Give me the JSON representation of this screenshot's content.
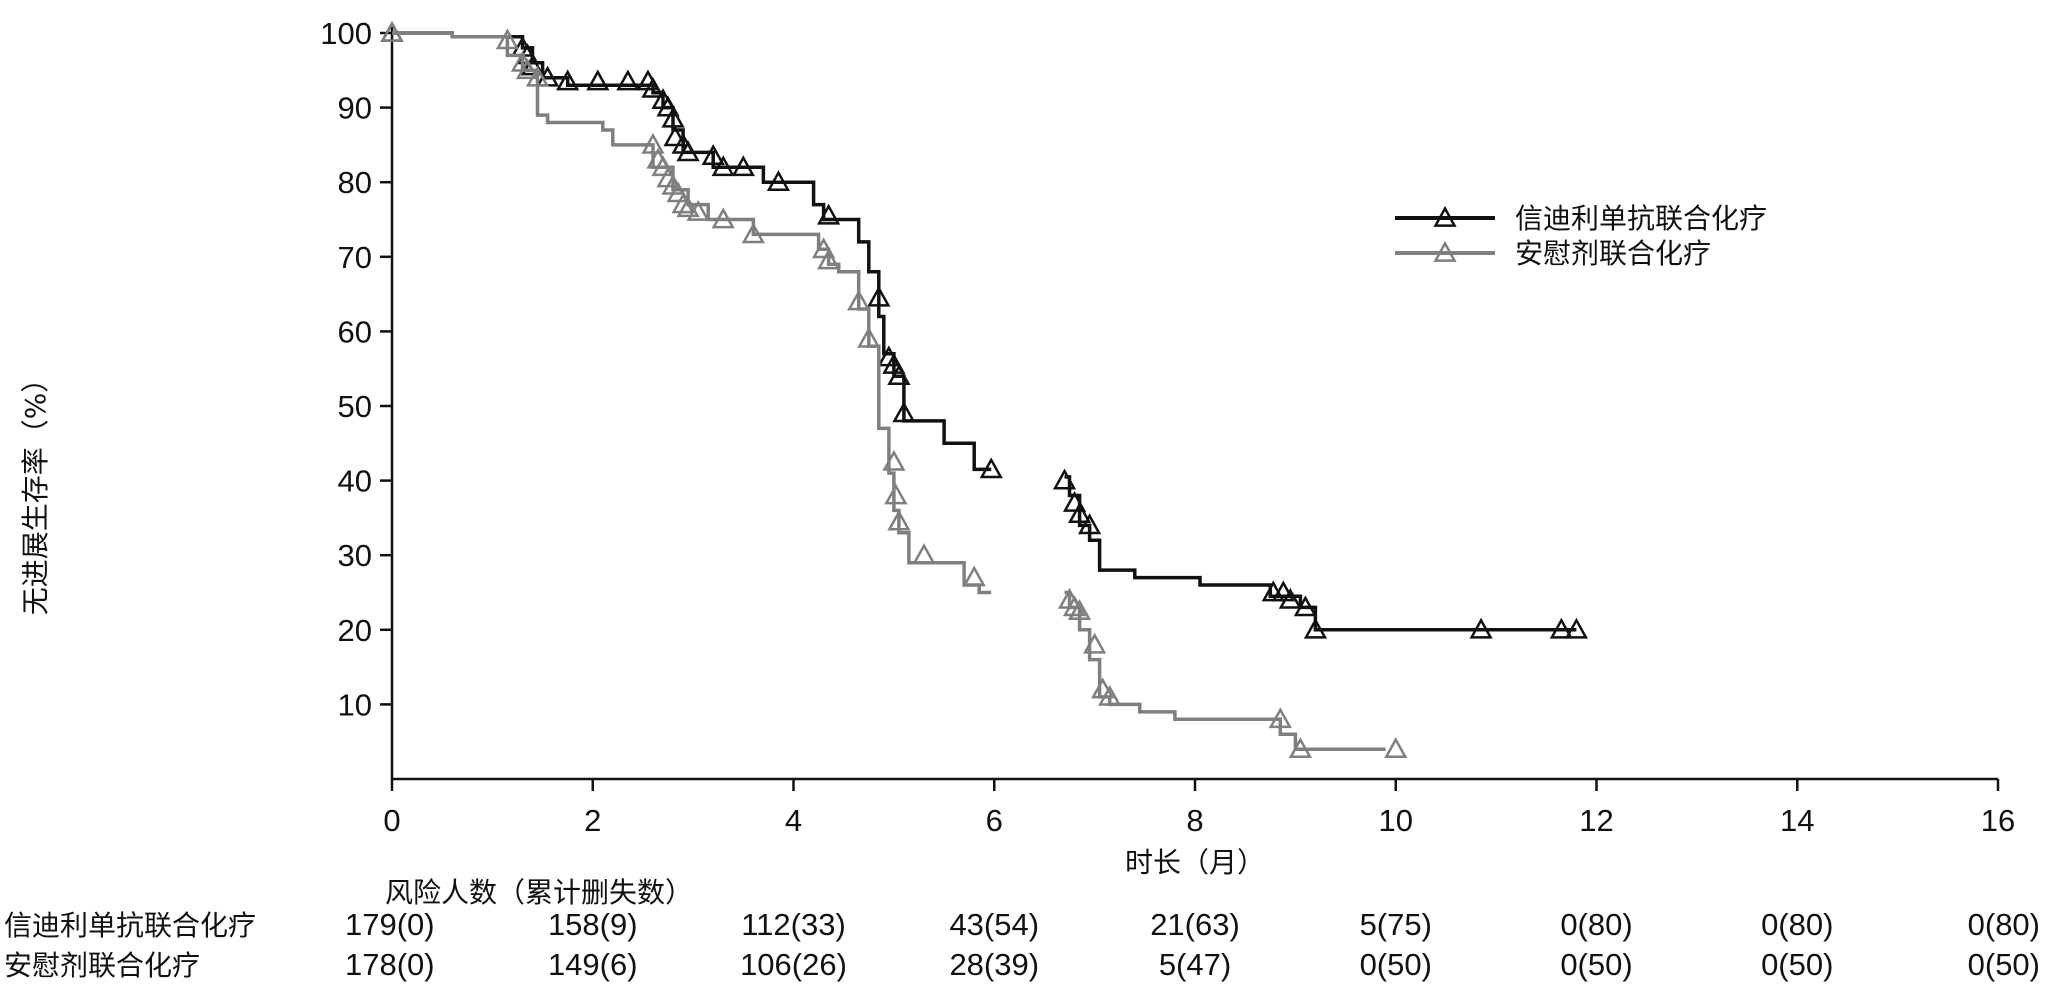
{
  "chart_data": {
    "type": "line",
    "subtype": "kaplan-meier step curve",
    "xlabel": "时长（月）",
    "ylabel": "无进展生存率（%）",
    "xlim": [
      0,
      16
    ],
    "ylim": [
      0,
      100
    ],
    "xticks": [
      "0",
      "2",
      "4",
      "6",
      "8",
      "10",
      "12",
      "14",
      "16"
    ],
    "yticks": [
      "10",
      "20",
      "30",
      "40",
      "50",
      "60",
      "70",
      "80",
      "90",
      "100"
    ],
    "legend_position": "right",
    "series": [
      {
        "name": "信迪利单抗联合化疗",
        "color": "#111111",
        "segments": [
          [
            [
              0,
              100
            ],
            [
              0.6,
              100
            ],
            [
              0.6,
              99.5
            ],
            [
              1.3,
              99.5
            ],
            [
              1.3,
              98
            ],
            [
              1.4,
              98
            ],
            [
              1.4,
              96
            ],
            [
              1.5,
              96
            ],
            [
              1.5,
              94
            ],
            [
              1.75,
              94
            ],
            [
              1.75,
              93
            ],
            [
              2.6,
              93
            ],
            [
              2.6,
              92
            ],
            [
              2.7,
              92
            ],
            [
              2.7,
              90
            ],
            [
              2.8,
              90
            ],
            [
              2.8,
              87
            ],
            [
              2.9,
              87
            ],
            [
              2.9,
              84
            ],
            [
              3.2,
              84
            ],
            [
              3.2,
              82
            ],
            [
              3.7,
              82
            ],
            [
              3.7,
              80
            ],
            [
              4.2,
              80
            ],
            [
              4.2,
              77
            ],
            [
              4.3,
              77
            ],
            [
              4.3,
              75
            ],
            [
              4.65,
              75
            ],
            [
              4.65,
              72
            ],
            [
              4.75,
              72
            ],
            [
              4.75,
              68
            ],
            [
              4.85,
              68
            ],
            [
              4.85,
              62
            ],
            [
              4.9,
              62
            ],
            [
              4.9,
              57
            ],
            [
              5.0,
              57
            ],
            [
              5.0,
              54
            ],
            [
              5.1,
              54
            ],
            [
              5.1,
              48
            ],
            [
              5.5,
              48
            ],
            [
              5.5,
              45
            ],
            [
              5.8,
              45
            ],
            [
              5.8,
              41.5
            ],
            [
              5.97,
              41.5
            ]
          ],
          [
            [
              6.7,
              40.5
            ],
            [
              6.75,
              40.5
            ],
            [
              6.75,
              38
            ],
            [
              6.85,
              38
            ],
            [
              6.85,
              34
            ],
            [
              6.95,
              34
            ],
            [
              6.95,
              32
            ],
            [
              7.05,
              32
            ],
            [
              7.05,
              28
            ],
            [
              7.4,
              28
            ],
            [
              7.4,
              27
            ],
            [
              8.05,
              27
            ],
            [
              8.05,
              26
            ],
            [
              8.75,
              26
            ],
            [
              8.75,
              24.5
            ],
            [
              9.05,
              24.5
            ],
            [
              9.05,
              23
            ],
            [
              9.2,
              23
            ],
            [
              9.2,
              20
            ],
            [
              11.8,
              20
            ]
          ]
        ],
        "censor_marks": [
          [
            0,
            100
          ],
          [
            1.3,
            98
          ],
          [
            1.35,
            97
          ],
          [
            1.4,
            95.5
          ],
          [
            1.55,
            94
          ],
          [
            1.75,
            93.5
          ],
          [
            2.05,
            93.5
          ],
          [
            2.35,
            93.5
          ],
          [
            2.55,
            93.5
          ],
          [
            2.6,
            92.5
          ],
          [
            2.7,
            91
          ],
          [
            2.75,
            90
          ],
          [
            2.8,
            88.5
          ],
          [
            2.82,
            86
          ],
          [
            2.9,
            85
          ],
          [
            2.95,
            84
          ],
          [
            3.2,
            83.5
          ],
          [
            3.3,
            82
          ],
          [
            3.5,
            82
          ],
          [
            3.85,
            80
          ],
          [
            4.35,
            75.5
          ],
          [
            4.85,
            64.5
          ],
          [
            4.95,
            56.5
          ],
          [
            5.0,
            55.5
          ],
          [
            5.05,
            54
          ],
          [
            5.1,
            49
          ],
          [
            5.97,
            41.5
          ],
          [
            6.7,
            40
          ],
          [
            6.8,
            37
          ],
          [
            6.85,
            35.5
          ],
          [
            6.95,
            34
          ],
          [
            8.78,
            25
          ],
          [
            8.88,
            25
          ],
          [
            8.95,
            24
          ],
          [
            9.1,
            23
          ],
          [
            9.2,
            20
          ],
          [
            10.85,
            20
          ],
          [
            11.65,
            20
          ],
          [
            11.8,
            20
          ]
        ]
      },
      {
        "name": "安慰剂联合化疗",
        "color": "#7f7f7f",
        "segments": [
          [
            [
              0,
              100
            ],
            [
              0.6,
              100
            ],
            [
              0.6,
              99.5
            ],
            [
              1.15,
              99.5
            ],
            [
              1.15,
              97
            ],
            [
              1.3,
              97
            ],
            [
              1.3,
              95
            ],
            [
              1.45,
              95
            ],
            [
              1.45,
              89
            ],
            [
              1.55,
              89
            ],
            [
              1.55,
              88
            ],
            [
              2.1,
              88
            ],
            [
              2.1,
              87
            ],
            [
              2.2,
              87
            ],
            [
              2.2,
              85
            ],
            [
              2.6,
              85
            ],
            [
              2.6,
              82
            ],
            [
              2.8,
              82
            ],
            [
              2.8,
              79
            ],
            [
              2.95,
              79
            ],
            [
              2.95,
              77
            ],
            [
              3.15,
              77
            ],
            [
              3.15,
              75
            ],
            [
              3.6,
              75
            ],
            [
              3.6,
              73
            ],
            [
              4.25,
              73
            ],
            [
              4.25,
              71
            ],
            [
              4.35,
              71
            ],
            [
              4.35,
              69
            ],
            [
              4.45,
              69
            ],
            [
              4.45,
              68
            ],
            [
              4.65,
              68
            ],
            [
              4.65,
              63
            ],
            [
              4.75,
              63
            ],
            [
              4.75,
              58
            ],
            [
              4.85,
              58
            ],
            [
              4.85,
              47
            ],
            [
              4.95,
              47
            ],
            [
              4.95,
              41
            ],
            [
              5.0,
              41
            ],
            [
              5.0,
              36
            ],
            [
              5.05,
              36
            ],
            [
              5.05,
              33
            ],
            [
              5.15,
              33
            ],
            [
              5.15,
              29
            ],
            [
              5.7,
              29
            ],
            [
              5.7,
              26
            ],
            [
              5.85,
              26
            ],
            [
              5.85,
              25
            ],
            [
              5.97,
              25
            ]
          ],
          [
            [
              6.7,
              25
            ],
            [
              6.75,
              25
            ],
            [
              6.75,
              23
            ],
            [
              6.85,
              23
            ],
            [
              6.85,
              20
            ],
            [
              6.95,
              20
            ],
            [
              6.95,
              16
            ],
            [
              7.05,
              16
            ],
            [
              7.05,
              11
            ],
            [
              7.15,
              11
            ],
            [
              7.15,
              10
            ],
            [
              7.45,
              10
            ],
            [
              7.45,
              9
            ],
            [
              7.8,
              9
            ],
            [
              7.8,
              8
            ],
            [
              8.85,
              8
            ],
            [
              8.85,
              6
            ],
            [
              9.0,
              6
            ],
            [
              9.0,
              4
            ],
            [
              9.9,
              4
            ]
          ]
        ],
        "censor_marks": [
          [
            0,
            100
          ],
          [
            1.15,
            99
          ],
          [
            1.3,
            96
          ],
          [
            1.35,
            95
          ],
          [
            1.45,
            94
          ],
          [
            2.6,
            85
          ],
          [
            2.65,
            83
          ],
          [
            2.7,
            82
          ],
          [
            2.75,
            80.5
          ],
          [
            2.8,
            79.5
          ],
          [
            2.85,
            78.5
          ],
          [
            2.9,
            77
          ],
          [
            2.95,
            76.5
          ],
          [
            3.05,
            76
          ],
          [
            3.3,
            75
          ],
          [
            3.6,
            73
          ],
          [
            4.3,
            71
          ],
          [
            4.35,
            69.5
          ],
          [
            4.65,
            64
          ],
          [
            4.75,
            59
          ],
          [
            5.0,
            42.5
          ],
          [
            5.02,
            38
          ],
          [
            5.05,
            34.5
          ],
          [
            5.3,
            30
          ],
          [
            5.8,
            27
          ],
          [
            6.75,
            24
          ],
          [
            6.8,
            23
          ],
          [
            6.85,
            22.5
          ],
          [
            7.0,
            18
          ],
          [
            7.08,
            12
          ],
          [
            7.15,
            11
          ],
          [
            8.85,
            8
          ],
          [
            9.05,
            4
          ],
          [
            10.0,
            4
          ]
        ]
      }
    ],
    "risk_table": {
      "title": "风险人数（累计删失数）",
      "timepoints": [
        "0",
        "2",
        "4",
        "6",
        "8",
        "10",
        "12",
        "14",
        "16"
      ],
      "rows": [
        {
          "label": "信迪利单抗联合化疗",
          "values": [
            "179(0)",
            "158(9)",
            "112(33)",
            "43(54)",
            "21(63)",
            "5(75)",
            "0(80)",
            "0(80)",
            "0(80)"
          ]
        },
        {
          "label": "安慰剂联合化疗",
          "values": [
            "178(0)",
            "149(6)",
            "106(26)",
            "28(39)",
            "5(47)",
            "0(50)",
            "0(50)",
            "0(50)",
            "0(50)"
          ]
        }
      ]
    }
  }
}
